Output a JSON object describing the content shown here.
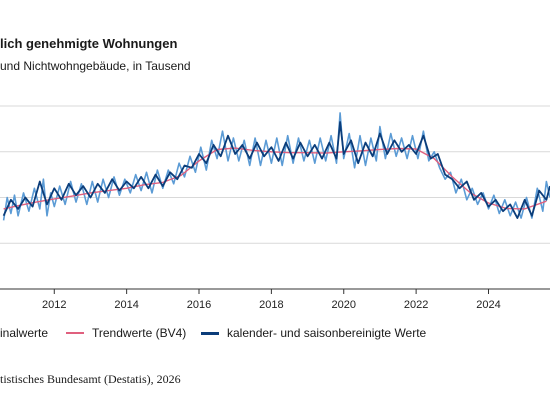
{
  "header": {
    "title": "lich genehmigte Wohnungen",
    "subtitle": "und Nichtwohngebäude, in Tausend"
  },
  "legend": {
    "items": [
      {
        "label": "inalwerte",
        "color": "#5b9bd5"
      },
      {
        "label": "Trendwerte (BV4)",
        "color": "#e0607e"
      },
      {
        "label": "kalender- und saisonbereinigte Werte",
        "color": "#0b3d7a"
      }
    ]
  },
  "footer": {
    "source": "tistisches Bundesamt (Destatis), 2026"
  },
  "chart_data": {
    "type": "line",
    "title": "lich genehmigte Wohnungen",
    "subtitle": "und Nichtwohngebäude, in Tausend",
    "x_ticks": [
      "2012",
      "2014",
      "2016",
      "2018",
      "2020",
      "2022",
      "2024"
    ],
    "xlim": [
      2010.5,
      2025.7
    ],
    "ylim": [
      0,
      4
    ],
    "y_gridlines": [
      1,
      2,
      3,
      4
    ],
    "grid": true,
    "legend_position": "bottom",
    "y_axis_labels_visible": false,
    "series": [
      {
        "name": "Trendwerte (BV4)",
        "color": "#e0607e",
        "points": [
          [
            2010.6,
            1.75
          ],
          [
            2011.0,
            1.82
          ],
          [
            2011.5,
            1.9
          ],
          [
            2012.0,
            1.97
          ],
          [
            2012.5,
            2.03
          ],
          [
            2013.0,
            2.1
          ],
          [
            2013.5,
            2.15
          ],
          [
            2014.0,
            2.2
          ],
          [
            2014.5,
            2.28
          ],
          [
            2015.0,
            2.33
          ],
          [
            2015.5,
            2.48
          ],
          [
            2016.0,
            2.8
          ],
          [
            2016.5,
            3.05
          ],
          [
            2017.0,
            3.08
          ],
          [
            2017.5,
            3.03
          ],
          [
            2018.0,
            3.0
          ],
          [
            2018.5,
            2.98
          ],
          [
            2019.0,
            2.98
          ],
          [
            2019.5,
            2.97
          ],
          [
            2020.0,
            3.0
          ],
          [
            2020.5,
            3.02
          ],
          [
            2021.0,
            3.05
          ],
          [
            2021.5,
            3.07
          ],
          [
            2022.0,
            3.06
          ],
          [
            2022.5,
            2.85
          ],
          [
            2023.0,
            2.45
          ],
          [
            2023.5,
            2.1
          ],
          [
            2024.0,
            1.88
          ],
          [
            2024.5,
            1.76
          ],
          [
            2025.0,
            1.75
          ],
          [
            2025.6,
            1.92
          ]
        ]
      },
      {
        "name": "kalender- und saisonbereinigte Werte",
        "color": "#0b3d7a",
        "points": [
          [
            2010.6,
            1.6
          ],
          [
            2010.8,
            1.95
          ],
          [
            2011.0,
            1.75
          ],
          [
            2011.2,
            2.0
          ],
          [
            2011.4,
            1.8
          ],
          [
            2011.6,
            2.35
          ],
          [
            2011.8,
            1.85
          ],
          [
            2012.0,
            2.2
          ],
          [
            2012.2,
            1.95
          ],
          [
            2012.4,
            2.3
          ],
          [
            2012.6,
            2.05
          ],
          [
            2012.8,
            2.25
          ],
          [
            2013.0,
            2.0
          ],
          [
            2013.2,
            2.3
          ],
          [
            2013.4,
            2.1
          ],
          [
            2013.6,
            2.4
          ],
          [
            2013.8,
            2.15
          ],
          [
            2014.0,
            2.35
          ],
          [
            2014.2,
            2.2
          ],
          [
            2014.4,
            2.45
          ],
          [
            2014.6,
            2.2
          ],
          [
            2014.8,
            2.5
          ],
          [
            2015.0,
            2.25
          ],
          [
            2015.2,
            2.55
          ],
          [
            2015.4,
            2.4
          ],
          [
            2015.6,
            2.7
          ],
          [
            2015.8,
            2.65
          ],
          [
            2016.0,
            2.95
          ],
          [
            2016.2,
            2.75
          ],
          [
            2016.4,
            3.15
          ],
          [
            2016.6,
            2.9
          ],
          [
            2016.8,
            3.35
          ],
          [
            2017.0,
            2.95
          ],
          [
            2017.2,
            3.15
          ],
          [
            2017.4,
            2.85
          ],
          [
            2017.6,
            3.2
          ],
          [
            2017.8,
            2.9
          ],
          [
            2018.0,
            3.1
          ],
          [
            2018.2,
            2.8
          ],
          [
            2018.4,
            3.2
          ],
          [
            2018.6,
            2.85
          ],
          [
            2018.8,
            3.2
          ],
          [
            2019.0,
            2.9
          ],
          [
            2019.2,
            3.15
          ],
          [
            2019.4,
            2.85
          ],
          [
            2019.6,
            3.2
          ],
          [
            2019.8,
            2.85
          ],
          [
            2019.9,
            3.65
          ],
          [
            2020.0,
            2.95
          ],
          [
            2020.2,
            3.25
          ],
          [
            2020.4,
            2.75
          ],
          [
            2020.6,
            3.2
          ],
          [
            2020.8,
            2.9
          ],
          [
            2021.0,
            3.4
          ],
          [
            2021.2,
            2.95
          ],
          [
            2021.4,
            3.25
          ],
          [
            2021.6,
            3.0
          ],
          [
            2021.8,
            3.15
          ],
          [
            2022.0,
            2.95
          ],
          [
            2022.2,
            3.35
          ],
          [
            2022.4,
            2.85
          ],
          [
            2022.6,
            2.95
          ],
          [
            2022.8,
            2.5
          ],
          [
            2023.0,
            2.4
          ],
          [
            2023.2,
            2.2
          ],
          [
            2023.4,
            2.35
          ],
          [
            2023.6,
            1.95
          ],
          [
            2023.8,
            2.1
          ],
          [
            2024.0,
            1.8
          ],
          [
            2024.2,
            1.95
          ],
          [
            2024.4,
            1.7
          ],
          [
            2024.6,
            1.85
          ],
          [
            2024.8,
            1.55
          ],
          [
            2025.0,
            1.95
          ],
          [
            2025.2,
            1.6
          ],
          [
            2025.4,
            2.15
          ],
          [
            2025.6,
            1.95
          ],
          [
            2025.7,
            2.25
          ]
        ]
      },
      {
        "name": "inalwerte",
        "color": "#5b9bd5",
        "points": [
          [
            2010.6,
            1.5
          ],
          [
            2010.7,
            2.0
          ],
          [
            2010.8,
            1.65
          ],
          [
            2010.9,
            2.05
          ],
          [
            2011.0,
            1.6
          ],
          [
            2011.15,
            2.1
          ],
          [
            2011.3,
            1.7
          ],
          [
            2011.45,
            2.2
          ],
          [
            2011.6,
            1.75
          ],
          [
            2011.7,
            2.4
          ],
          [
            2011.8,
            1.6
          ],
          [
            2011.9,
            2.1
          ],
          [
            2012.0,
            1.8
          ],
          [
            2012.15,
            2.25
          ],
          [
            2012.3,
            1.85
          ],
          [
            2012.45,
            2.35
          ],
          [
            2012.6,
            1.9
          ],
          [
            2012.75,
            2.3
          ],
          [
            2012.9,
            1.85
          ],
          [
            2013.05,
            2.35
          ],
          [
            2013.2,
            1.9
          ],
          [
            2013.35,
            2.4
          ],
          [
            2013.5,
            2.0
          ],
          [
            2013.65,
            2.45
          ],
          [
            2013.8,
            2.05
          ],
          [
            2013.95,
            2.4
          ],
          [
            2014.1,
            2.1
          ],
          [
            2014.25,
            2.5
          ],
          [
            2014.4,
            2.15
          ],
          [
            2014.55,
            2.55
          ],
          [
            2014.7,
            2.1
          ],
          [
            2014.85,
            2.6
          ],
          [
            2015.0,
            2.2
          ],
          [
            2015.15,
            2.6
          ],
          [
            2015.3,
            2.3
          ],
          [
            2015.45,
            2.75
          ],
          [
            2015.6,
            2.45
          ],
          [
            2015.75,
            2.9
          ],
          [
            2015.9,
            2.55
          ],
          [
            2016.05,
            3.1
          ],
          [
            2016.2,
            2.6
          ],
          [
            2016.35,
            3.25
          ],
          [
            2016.5,
            2.85
          ],
          [
            2016.65,
            3.45
          ],
          [
            2016.8,
            2.8
          ],
          [
            2016.95,
            3.3
          ],
          [
            2017.1,
            2.8
          ],
          [
            2017.25,
            3.25
          ],
          [
            2017.4,
            2.7
          ],
          [
            2017.55,
            3.3
          ],
          [
            2017.7,
            2.7
          ],
          [
            2017.85,
            3.25
          ],
          [
            2018.0,
            2.75
          ],
          [
            2018.15,
            3.3
          ],
          [
            2018.3,
            2.7
          ],
          [
            2018.45,
            3.35
          ],
          [
            2018.6,
            2.75
          ],
          [
            2018.75,
            3.3
          ],
          [
            2018.9,
            2.8
          ],
          [
            2019.05,
            3.25
          ],
          [
            2019.2,
            2.75
          ],
          [
            2019.35,
            3.3
          ],
          [
            2019.5,
            2.8
          ],
          [
            2019.65,
            3.35
          ],
          [
            2019.8,
            2.75
          ],
          [
            2019.9,
            3.85
          ],
          [
            2020.0,
            2.85
          ],
          [
            2020.15,
            3.4
          ],
          [
            2020.3,
            2.65
          ],
          [
            2020.45,
            3.35
          ],
          [
            2020.6,
            2.7
          ],
          [
            2020.75,
            3.3
          ],
          [
            2020.9,
            2.8
          ],
          [
            2021.0,
            3.55
          ],
          [
            2021.15,
            2.85
          ],
          [
            2021.3,
            3.4
          ],
          [
            2021.45,
            2.9
          ],
          [
            2021.6,
            3.3
          ],
          [
            2021.75,
            2.85
          ],
          [
            2021.9,
            3.35
          ],
          [
            2022.05,
            2.85
          ],
          [
            2022.2,
            3.45
          ],
          [
            2022.35,
            2.8
          ],
          [
            2022.5,
            3.0
          ],
          [
            2022.65,
            2.65
          ],
          [
            2022.8,
            2.4
          ],
          [
            2022.95,
            2.55
          ],
          [
            2023.1,
            2.1
          ],
          [
            2023.25,
            2.4
          ],
          [
            2023.4,
            1.95
          ],
          [
            2023.55,
            2.2
          ],
          [
            2023.7,
            1.85
          ],
          [
            2023.85,
            2.1
          ],
          [
            2024.0,
            1.75
          ],
          [
            2024.15,
            2.05
          ],
          [
            2024.3,
            1.65
          ],
          [
            2024.45,
            1.95
          ],
          [
            2024.6,
            1.6
          ],
          [
            2024.75,
            1.9
          ],
          [
            2024.9,
            1.55
          ],
          [
            2025.05,
            2.0
          ],
          [
            2025.2,
            1.55
          ],
          [
            2025.35,
            2.2
          ],
          [
            2025.5,
            1.7
          ],
          [
            2025.6,
            2.35
          ],
          [
            2025.7,
            2.0
          ]
        ]
      }
    ]
  }
}
